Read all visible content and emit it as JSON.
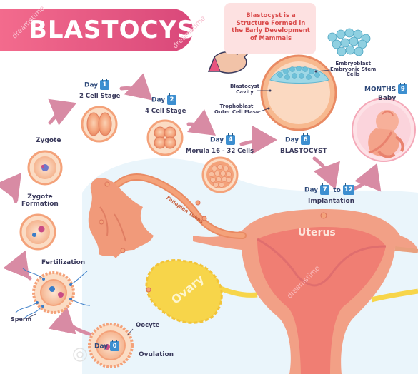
{
  "title": "BLASTOCYST",
  "info_box": "Blastocyst is a Structure Formed in the Early Development of Mammals",
  "watermark": "dreamstime",
  "stages": {
    "ovulation": {
      "day_word": "Day",
      "day_num": "0",
      "label": "Ovulation",
      "oocyte": "Oocyte"
    },
    "fertilization": {
      "label": "Fertilization",
      "sperm": "Sperm"
    },
    "zygote_formation": {
      "label_line1": "Zygote",
      "label_line2": "Formation"
    },
    "zygote": {
      "label": "Zygote"
    },
    "two_cell": {
      "day_word": "Day",
      "day_num": "1",
      "label": "2 Cell Stage"
    },
    "four_cell": {
      "day_word": "Day",
      "day_num": "2",
      "label": "4 Cell Stage"
    },
    "morula": {
      "day_word": "Day",
      "day_num": "4",
      "label": "Morula 16 - 32 Cells"
    },
    "blastocyst": {
      "day_word": "Day",
      "day_num": "6",
      "label": "BLASTOCYST",
      "cavity_line1": "Blastocyst",
      "cavity_line2": "Cavity",
      "tropho_line1": "Trophoblast",
      "tropho_line2": "Outer Cell Mass",
      "embryo_line1": "Embryoblast",
      "embryo_line2": "Embryonic Stem",
      "embryo_line3": "Cells"
    },
    "implantation": {
      "day_word": "Day",
      "day_from": "7",
      "to_word": "to",
      "day_to": "12",
      "label": "Implantation"
    },
    "baby": {
      "months_word": "MONTHS",
      "months_num": "9",
      "label": "Baby"
    }
  },
  "anatomy": {
    "uterus": "Uterus",
    "ovary": "Ovary",
    "tube": "Fallopian Tubes"
  },
  "colors": {
    "banner": "#e8557f",
    "info_text": "#d94b4b",
    "cell": "#f3a07a",
    "uterus": "#f4a285",
    "ovary": "#f7d54a",
    "badge": "#3d8fd0",
    "arrow": "#d88ba4"
  }
}
